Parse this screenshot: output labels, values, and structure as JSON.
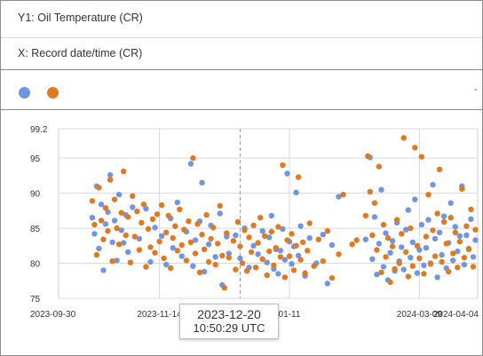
{
  "fields": {
    "y_label": "Y1: Oil Temperature   (CR)",
    "x_label": "X: Record date/time   (CR)"
  },
  "legend": {
    "menu_glyph": "-",
    "series": [
      {
        "color": "#6f95e3"
      },
      {
        "color": "#e07a1f"
      }
    ]
  },
  "tooltip": {
    "date": "2023-12-20",
    "time": "10:50:29 UTC"
  },
  "chart_data": {
    "type": "scatter",
    "x_axis": "date",
    "xlim": [
      "2023-09-30",
      "2024-04-04"
    ],
    "ylim": [
      75,
      99.2
    ],
    "y_ticks": [
      "99.2",
      "95",
      "90",
      "85",
      "80",
      "75"
    ],
    "x_ticks": [
      "2023-09-30",
      "2023-11-14",
      "01-11",
      "2024-03-09",
      "2024-04-04"
    ],
    "cursor_x": "2023-12-20",
    "grid": true,
    "series": [
      {
        "color": "#6f95e3",
        "points": [
          [
            "2023-10-15",
            86.5
          ],
          [
            "2023-10-16",
            84.2
          ],
          [
            "2023-10-17",
            91.0
          ],
          [
            "2023-10-18",
            82.1
          ],
          [
            "2023-10-19",
            88.4
          ],
          [
            "2023-10-20",
            79.0
          ],
          [
            "2023-10-21",
            85.6
          ],
          [
            "2023-10-22",
            87.3
          ],
          [
            "2023-10-23",
            92.6
          ],
          [
            "2023-10-24",
            83.0
          ],
          [
            "2023-10-25",
            86.1
          ],
          [
            "2023-10-26",
            80.4
          ],
          [
            "2023-10-27",
            89.8
          ],
          [
            "2023-10-28",
            84.7
          ],
          [
            "2023-10-29",
            82.9
          ],
          [
            "2023-10-30",
            86.9
          ],
          [
            "2023-10-31",
            81.6
          ],
          [
            "2023-11-02",
            88.0
          ],
          [
            "2023-11-05",
            83.5
          ],
          [
            "2023-11-08",
            87.8
          ],
          [
            "2023-11-10",
            80.2
          ],
          [
            "2023-11-12",
            85.1
          ],
          [
            "2023-11-15",
            83.9
          ],
          [
            "2023-11-17",
            79.8
          ],
          [
            "2023-11-19",
            86.4
          ],
          [
            "2023-11-20",
            82.2
          ],
          [
            "2023-11-22",
            88.7
          ],
          [
            "2023-11-24",
            81.0
          ],
          [
            "2023-11-26",
            84.5
          ],
          [
            "2023-11-28",
            94.2
          ],
          [
            "2023-11-29",
            79.6
          ],
          [
            "2023-11-30",
            83.3
          ],
          [
            "2023-12-02",
            86.0
          ],
          [
            "2023-12-03",
            91.5
          ],
          [
            "2023-12-04",
            78.8
          ],
          [
            "2023-12-06",
            82.7
          ],
          [
            "2023-12-07",
            85.4
          ],
          [
            "2023-12-09",
            80.9
          ],
          [
            "2023-12-11",
            87.1
          ],
          [
            "2023-12-12",
            76.9
          ],
          [
            "2023-12-14",
            83.8
          ],
          [
            "2023-12-15",
            81.4
          ],
          [
            "2023-12-18",
            84.0
          ],
          [
            "2023-12-20",
            80.7
          ],
          [
            "2023-12-22",
            85.0
          ],
          [
            "2023-12-24",
            79.4
          ],
          [
            "2023-12-26",
            82.5
          ],
          [
            "2023-12-28",
            81.3
          ],
          [
            "2023-12-30",
            84.6
          ],
          [
            "2024-01-01",
            80.1
          ],
          [
            "2024-01-02",
            83.7
          ],
          [
            "2024-01-03",
            86.8
          ],
          [
            "2024-01-04",
            79.2
          ],
          [
            "2024-01-05",
            82.0
          ],
          [
            "2024-01-06",
            78.5
          ],
          [
            "2024-01-07",
            81.8
          ],
          [
            "2024-01-08",
            84.9
          ],
          [
            "2024-01-09",
            80.5
          ],
          [
            "2024-01-10",
            92.8
          ],
          [
            "2024-01-11",
            83.1
          ],
          [
            "2024-01-12",
            79.9
          ],
          [
            "2024-01-13",
            82.4
          ],
          [
            "2024-01-14",
            90.1
          ],
          [
            "2024-01-15",
            81.1
          ],
          [
            "2024-01-16",
            85.3
          ],
          [
            "2024-01-18",
            78.2
          ],
          [
            "2024-01-20",
            83.6
          ],
          [
            "2024-01-23",
            80.0
          ],
          [
            "2024-01-26",
            84.1
          ],
          [
            "2024-01-28",
            77.1
          ],
          [
            "2024-01-30",
            82.6
          ],
          [
            "2024-02-02",
            89.5
          ],
          [
            "2024-02-14",
            83.4
          ],
          [
            "2024-02-16",
            95.1
          ],
          [
            "2024-02-17",
            80.6
          ],
          [
            "2024-02-18",
            86.6
          ],
          [
            "2024-02-19",
            78.4
          ],
          [
            "2024-02-20",
            82.8
          ],
          [
            "2024-02-21",
            90.5
          ],
          [
            "2024-02-22",
            79.5
          ],
          [
            "2024-02-23",
            84.3
          ],
          [
            "2024-02-24",
            77.6
          ],
          [
            "2024-02-25",
            81.5
          ],
          [
            "2024-02-26",
            83.2
          ],
          [
            "2024-02-27",
            78.9
          ],
          [
            "2024-02-28",
            85.8
          ],
          [
            "2024-02-29",
            80.3
          ],
          [
            "2024-03-01",
            82.3
          ],
          [
            "2024-03-02",
            79.1
          ],
          [
            "2024-03-03",
            84.8
          ],
          [
            "2024-03-04",
            87.6
          ],
          [
            "2024-03-05",
            80.8
          ],
          [
            "2024-03-06",
            83.0
          ],
          [
            "2024-03-07",
            89.1
          ],
          [
            "2024-03-08",
            78.6
          ],
          [
            "2024-03-09",
            81.9
          ],
          [
            "2024-03-10",
            85.5
          ],
          [
            "2024-03-11",
            79.7
          ],
          [
            "2024-03-12",
            82.2
          ],
          [
            "2024-03-13",
            86.2
          ],
          [
            "2024-03-14",
            80.0
          ],
          [
            "2024-03-15",
            91.2
          ],
          [
            "2024-03-16",
            83.5
          ],
          [
            "2024-03-17",
            78.0
          ],
          [
            "2024-03-18",
            84.4
          ],
          [
            "2024-03-19",
            81.2
          ],
          [
            "2024-03-20",
            86.7
          ],
          [
            "2024-03-21",
            79.3
          ],
          [
            "2024-03-22",
            82.9
          ],
          [
            "2024-03-23",
            88.6
          ],
          [
            "2024-03-24",
            80.4
          ],
          [
            "2024-03-25",
            85.2
          ],
          [
            "2024-03-26",
            81.7
          ],
          [
            "2024-03-27",
            83.9
          ],
          [
            "2024-03-28",
            91.0
          ],
          [
            "2024-03-29",
            79.8
          ],
          [
            "2024-03-30",
            84.0
          ],
          [
            "2024-03-31",
            82.1
          ],
          [
            "2024-04-01",
            86.3
          ],
          [
            "2024-04-02",
            80.9
          ],
          [
            "2024-04-03",
            83.3
          ]
        ]
      },
      {
        "color": "#e07a1f",
        "points": [
          [
            "2023-10-15",
            88.9
          ],
          [
            "2023-10-16",
            85.5
          ],
          [
            "2023-10-17",
            81.2
          ],
          [
            "2023-10-18",
            90.8
          ],
          [
            "2023-10-19",
            86.1
          ],
          [
            "2023-10-20",
            83.4
          ],
          [
            "2023-10-21",
            87.9
          ],
          [
            "2023-10-22",
            84.6
          ],
          [
            "2023-10-23",
            91.9
          ],
          [
            "2023-10-24",
            80.3
          ],
          [
            "2023-10-25",
            89.1
          ],
          [
            "2023-10-26",
            85.0
          ],
          [
            "2023-10-27",
            82.7
          ],
          [
            "2023-10-28",
            87.2
          ],
          [
            "2023-10-29",
            93.1
          ],
          [
            "2023-10-30",
            84.0
          ],
          [
            "2023-10-31",
            86.6
          ],
          [
            "2023-11-01",
            80.1
          ],
          [
            "2023-11-02",
            89.6
          ],
          [
            "2023-11-03",
            83.8
          ],
          [
            "2023-11-04",
            87.4
          ],
          [
            "2023-11-05",
            81.9
          ],
          [
            "2023-11-06",
            85.8
          ],
          [
            "2023-11-07",
            88.4
          ],
          [
            "2023-11-08",
            79.5
          ],
          [
            "2023-11-09",
            84.9
          ],
          [
            "2023-11-10",
            82.3
          ],
          [
            "2023-11-11",
            86.3
          ],
          [
            "2023-11-12",
            81.5
          ],
          [
            "2023-11-13",
            87.0
          ],
          [
            "2023-11-14",
            83.1
          ],
          [
            "2023-11-15",
            88.3
          ],
          [
            "2023-11-16",
            80.7
          ],
          [
            "2023-11-17",
            84.4
          ],
          [
            "2023-11-18",
            86.8
          ],
          [
            "2023-11-19",
            79.3
          ],
          [
            "2023-11-20",
            83.6
          ],
          [
            "2023-11-21",
            85.3
          ],
          [
            "2023-11-22",
            81.8
          ],
          [
            "2023-11-23",
            87.7
          ],
          [
            "2023-11-24",
            82.6
          ],
          [
            "2023-11-25",
            84.8
          ],
          [
            "2023-11-26",
            80.4
          ],
          [
            "2023-11-27",
            86.0
          ],
          [
            "2023-11-28",
            83.0
          ],
          [
            "2023-11-29",
            95.0
          ],
          [
            "2023-11-30",
            81.4
          ],
          [
            "2023-12-01",
            85.6
          ],
          [
            "2023-12-02",
            78.7
          ],
          [
            "2023-12-03",
            84.1
          ],
          [
            "2023-12-04",
            82.0
          ],
          [
            "2023-12-05",
            86.9
          ],
          [
            "2023-12-06",
            80.2
          ],
          [
            "2023-12-07",
            83.5
          ],
          [
            "2023-12-08",
            85.1
          ],
          [
            "2023-12-09",
            79.8
          ],
          [
            "2023-12-10",
            82.8
          ],
          [
            "2023-12-11",
            88.2
          ],
          [
            "2023-12-12",
            81.1
          ],
          [
            "2023-12-13",
            76.5
          ],
          [
            "2023-12-14",
            84.3
          ],
          [
            "2023-12-15",
            80.8
          ],
          [
            "2023-12-17",
            83.2
          ],
          [
            "2023-12-18",
            79.1
          ],
          [
            "2023-12-19",
            85.9
          ],
          [
            "2023-12-20",
            82.4
          ],
          [
            "2023-12-21",
            80.0
          ],
          [
            "2023-12-22",
            84.7
          ],
          [
            "2023-12-23",
            78.9
          ],
          [
            "2023-12-24",
            83.7
          ],
          [
            "2023-12-25",
            81.6
          ],
          [
            "2023-12-26",
            85.4
          ],
          [
            "2023-12-27",
            79.4
          ],
          [
            "2023-12-28",
            82.9
          ],
          [
            "2023-12-29",
            86.5
          ],
          [
            "2023-12-30",
            80.6
          ],
          [
            "2023-12-31",
            83.9
          ],
          [
            "2024-01-01",
            78.3
          ],
          [
            "2024-01-02",
            81.7
          ],
          [
            "2024-01-03",
            84.5
          ],
          [
            "2024-01-04",
            79.7
          ],
          [
            "2024-01-05",
            82.2
          ],
          [
            "2024-01-06",
            85.2
          ],
          [
            "2024-01-07",
            80.9
          ],
          [
            "2024-01-08",
            94.0
          ],
          [
            "2024-01-09",
            78.0
          ],
          [
            "2024-01-10",
            83.3
          ],
          [
            "2024-01-11",
            81.0
          ],
          [
            "2024-01-12",
            84.2
          ],
          [
            "2024-01-13",
            79.0
          ],
          [
            "2024-01-14",
            82.5
          ],
          [
            "2024-01-15",
            92.3
          ],
          [
            "2024-01-16",
            80.5
          ],
          [
            "2024-01-17",
            83.0
          ],
          [
            "2024-01-18",
            78.6
          ],
          [
            "2024-01-19",
            81.8
          ],
          [
            "2024-01-20",
            85.7
          ],
          [
            "2024-01-22",
            79.6
          ],
          [
            "2024-01-24",
            83.4
          ],
          [
            "2024-01-26",
            80.3
          ],
          [
            "2024-01-28",
            84.6
          ],
          [
            "2024-01-30",
            77.9
          ],
          [
            "2024-02-02",
            81.3
          ],
          [
            "2024-02-04",
            89.8
          ],
          [
            "2024-02-08",
            82.7
          ],
          [
            "2024-02-10",
            83.3
          ],
          [
            "2024-02-14",
            86.8
          ],
          [
            "2024-02-15",
            95.3
          ],
          [
            "2024-02-16",
            90.2
          ],
          [
            "2024-02-17",
            84.0
          ],
          [
            "2024-02-18",
            88.6
          ],
          [
            "2024-02-19",
            81.9
          ],
          [
            "2024-02-20",
            93.8
          ],
          [
            "2024-02-21",
            78.7
          ],
          [
            "2024-02-22",
            85.5
          ],
          [
            "2024-02-23",
            80.9
          ],
          [
            "2024-02-24",
            83.6
          ],
          [
            "2024-02-25",
            77.3
          ],
          [
            "2024-02-26",
            82.4
          ],
          [
            "2024-02-27",
            79.2
          ],
          [
            "2024-02-28",
            86.2
          ],
          [
            "2024-02-29",
            80.0
          ],
          [
            "2024-03-01",
            84.2
          ],
          [
            "2024-03-02",
            97.9
          ],
          [
            "2024-03-03",
            81.6
          ],
          [
            "2024-03-04",
            78.1
          ],
          [
            "2024-03-05",
            85.0
          ],
          [
            "2024-03-06",
            79.6
          ],
          [
            "2024-03-07",
            96.5
          ],
          [
            "2024-03-08",
            82.5
          ],
          [
            "2024-03-09",
            80.7
          ],
          [
            "2024-03-10",
            95.2
          ],
          [
            "2024-03-11",
            78.5
          ],
          [
            "2024-03-12",
            83.8
          ],
          [
            "2024-03-13",
            89.8
          ],
          [
            "2024-03-14",
            79.9
          ],
          [
            "2024-03-15",
            84.7
          ],
          [
            "2024-03-16",
            81.0
          ],
          [
            "2024-03-17",
            87.1
          ],
          [
            "2024-03-18",
            93.4
          ],
          [
            "2024-03-19",
            80.2
          ],
          [
            "2024-03-20",
            85.9
          ],
          [
            "2024-03-21",
            82.8
          ],
          [
            "2024-03-22",
            78.8
          ],
          [
            "2024-03-23",
            86.5
          ],
          [
            "2024-03-24",
            81.4
          ],
          [
            "2024-03-25",
            84.4
          ],
          [
            "2024-03-26",
            79.4
          ],
          [
            "2024-03-27",
            83.1
          ],
          [
            "2024-03-28",
            90.6
          ],
          [
            "2024-03-29",
            80.8
          ],
          [
            "2024-03-30",
            85.3
          ],
          [
            "2024-03-31",
            82.0
          ],
          [
            "2024-04-01",
            87.7
          ],
          [
            "2024-04-02",
            79.5
          ],
          [
            "2024-04-03",
            84.8
          ]
        ]
      }
    ]
  }
}
